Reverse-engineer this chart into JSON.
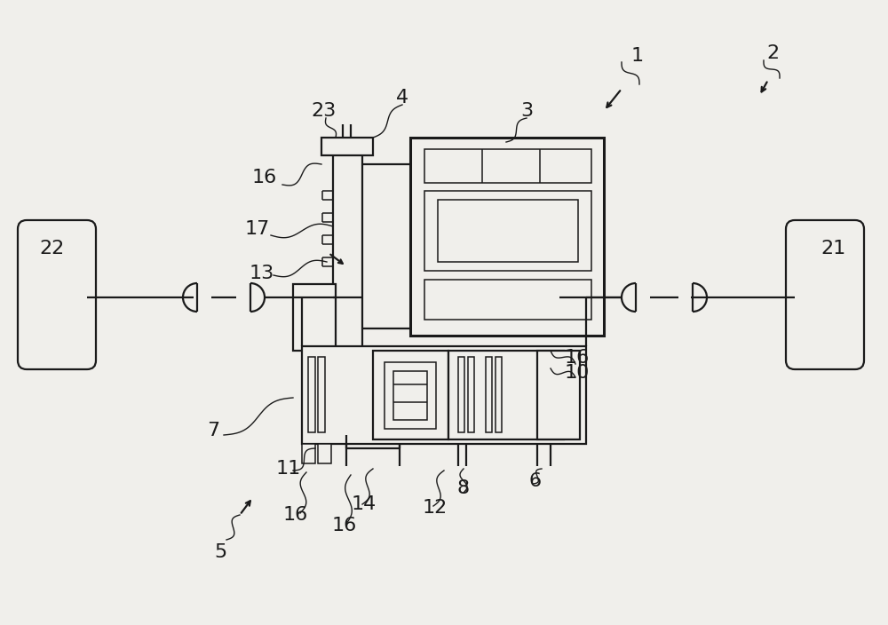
{
  "bg_color": "#f0efeb",
  "line_color": "#1a1a1a",
  "fig_width": 10.0,
  "fig_height": 7.04,
  "lw": 1.6,
  "lw_thin": 1.1,
  "lw_thick": 2.2
}
